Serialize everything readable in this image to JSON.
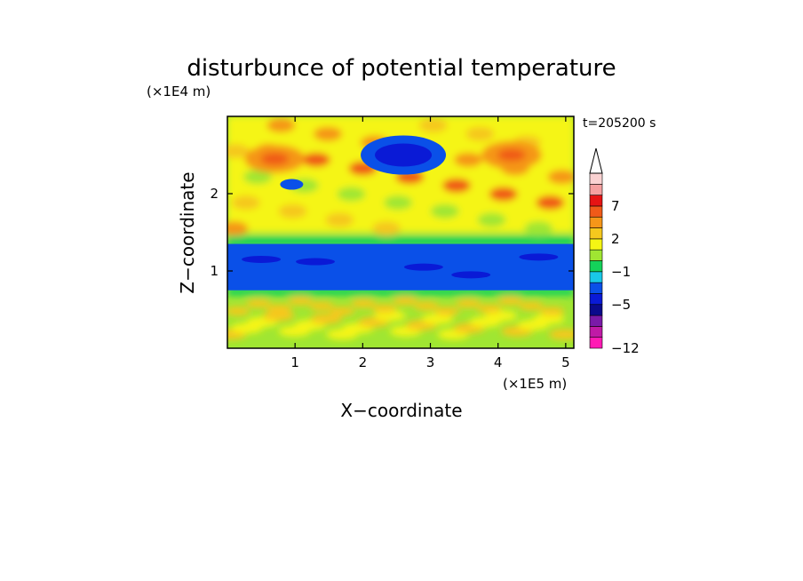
{
  "chart_data": {
    "type": "heatmap",
    "title": "disturbunce of potential temperature",
    "xlabel": "X−coordinate",
    "ylabel": "Z−coordinate",
    "x_unit": "(×1E5 m)",
    "y_unit": "(×1E4 m)",
    "time_label": "t=205200 s",
    "xlim": [
      0,
      5.12
    ],
    "ylim": [
      0,
      3.0
    ],
    "x_ticks": [
      1,
      2,
      3,
      4,
      5
    ],
    "x_tick_labels": [
      "1",
      "2",
      "3",
      "4",
      "5"
    ],
    "y_ticks": [
      1,
      2
    ],
    "y_tick_labels": [
      "1",
      "2"
    ],
    "colorbar": {
      "levels": [
        -12,
        -11,
        -9,
        -7,
        -5,
        -4,
        -3,
        -1,
        0,
        1,
        2,
        3,
        5,
        7,
        9,
        10
      ],
      "tick_labels": [
        "−12",
        "−5",
        "−1",
        "2",
        "7"
      ],
      "tick_values": [
        -12,
        -5,
        -1,
        2,
        7
      ],
      "colors": [
        "#ff1ab4",
        "#c01aa6",
        "#7a1aa8",
        "#0a0a8c",
        "#0a1ad6",
        "#0a50e8",
        "#19c8e8",
        "#14d25a",
        "#a0e632",
        "#f5f514",
        "#f5c81e",
        "#f59619",
        "#f05a19",
        "#e61414",
        "#f5a0a0",
        "#fad2d2"
      ],
      "extend": "max"
    },
    "fields": {
      "stable_layer": {
        "z_min": 0.75,
        "z_max": 1.35,
        "value": -5
      },
      "cold_anomaly": {
        "x": 2.6,
        "z": 2.5,
        "value": -5
      },
      "small_cold_eddy": {
        "x": 0.95,
        "z": 2.12,
        "value": -5
      },
      "warm_upper_left": {
        "x": 0.7,
        "z": 2.45,
        "value": 3
      },
      "warm_upper_right": {
        "x": 4.2,
        "z": 2.5,
        "value": 3
      }
    }
  }
}
